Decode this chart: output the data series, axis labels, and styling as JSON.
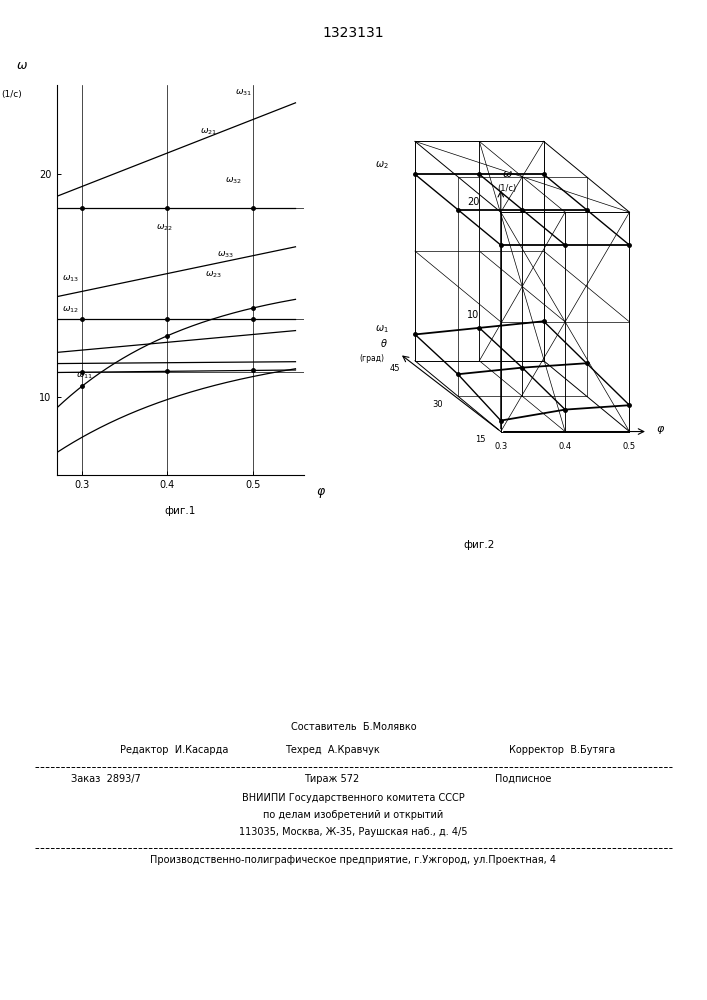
{
  "title": "1323131",
  "fig1_caption": "фиг.1",
  "fig2_caption": "фиг.2",
  "footer_sestavitel": "Составитель  Б.Молявко",
  "footer_redaktor": "Редактор  И.Касарда",
  "footer_tehred": "Техред  А.Кравчук",
  "footer_korrektor": "Корректор  В.Бутяга",
  "footer_zakaz": "Заказ  2893/7",
  "footer_tirazh": "Тираж 572",
  "footer_podpisnoe": "Подписное",
  "footer_vnipi": "ВНИИПИ Государственного комитета СССР",
  "footer_dela": "по делам изобретений и открытий",
  "footer_addr": "113035, Москва, Ж-35, Раушская наб., д. 4/5",
  "footer_factory": "Производственно-полиграфическое предприятие, г.Ужгород, ул.Проектная, 4"
}
